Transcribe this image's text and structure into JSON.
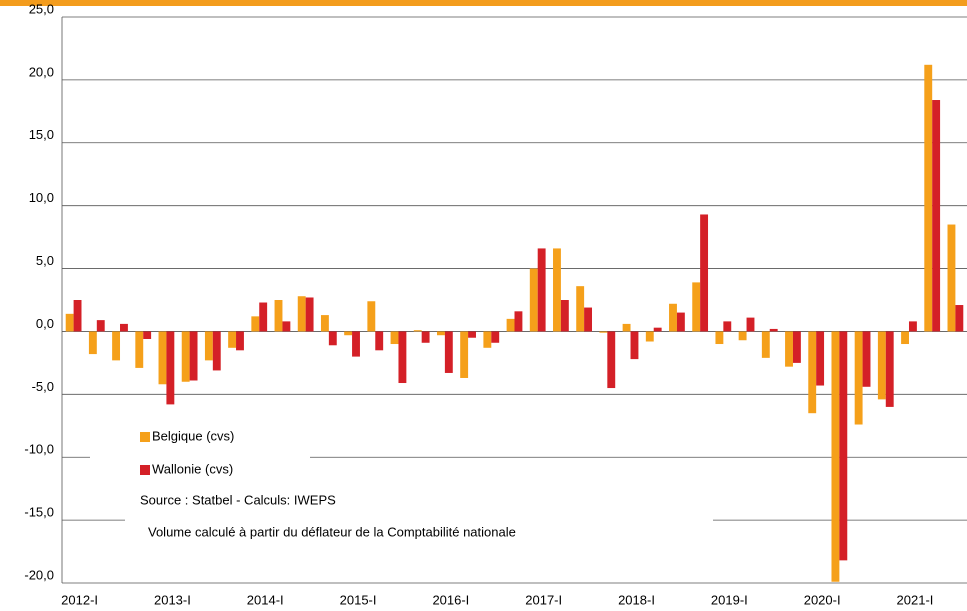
{
  "chart_data": {
    "type": "bar",
    "categories": [
      "2012-I",
      null,
      null,
      null,
      "2013-I",
      null,
      null,
      null,
      "2014-I",
      null,
      null,
      null,
      "2015-I",
      null,
      null,
      null,
      "2016-I",
      null,
      null,
      null,
      "2017-I",
      null,
      null,
      null,
      "2018-I",
      null,
      null,
      null,
      "2019-I",
      null,
      null,
      null,
      "2020-I",
      null,
      null,
      null,
      "2021-I",
      null,
      null
    ],
    "series": [
      {
        "name": "Belgique (cvs)",
        "color": "#f5a01a",
        "values": [
          1.4,
          -1.8,
          -2.3,
          -2.9,
          -4.2,
          -4.0,
          -2.3,
          -1.3,
          1.2,
          2.5,
          2.8,
          1.3,
          -0.3,
          2.4,
          -1.0,
          0.1,
          -0.3,
          -3.7,
          -1.3,
          1.0,
          5.0,
          6.6,
          3.6,
          -0.1,
          0.6,
          -0.8,
          2.2,
          3.9,
          -1.0,
          -0.7,
          -2.1,
          -2.8,
          -6.5,
          -19.9,
          -7.4,
          -5.4,
          -1.0,
          21.2,
          8.5
        ]
      },
      {
        "name": "Wallonie (cvs)",
        "color": "#d42027",
        "values": [
          2.5,
          0.9,
          0.6,
          -0.6,
          -5.8,
          -3.9,
          -3.1,
          -1.5,
          2.3,
          0.8,
          2.7,
          -1.1,
          -2.0,
          -1.5,
          -4.1,
          -0.9,
          -3.3,
          -0.5,
          -0.9,
          1.6,
          6.6,
          2.5,
          1.9,
          -4.5,
          -2.2,
          0.3,
          1.5,
          9.3,
          0.8,
          1.1,
          0.2,
          -2.5,
          -4.3,
          -18.2,
          -4.4,
          -6.0,
          0.8,
          18.4,
          2.1
        ]
      }
    ],
    "annotations": [
      "Source : Statbel - Calculs: IWEPS",
      "Volume calculé à partir du déflateur de la Comptabilité nationale"
    ],
    "ylim": [
      -20,
      25
    ],
    "yticks": [
      {
        "value": -20,
        "label": "-20,0"
      },
      {
        "value": -15,
        "label": "-15,0"
      },
      {
        "value": -10,
        "label": "-10,0"
      },
      {
        "value": -5,
        "label": "-5,0"
      },
      {
        "value": 0,
        "label": "0,0"
      },
      {
        "value": 5,
        "label": "5,0"
      },
      {
        "value": 10,
        "label": "10,0"
      },
      {
        "value": 15,
        "label": "15,0"
      },
      {
        "value": 20,
        "label": "20,0"
      },
      {
        "value": 25,
        "label": "25,0"
      }
    ],
    "grid": true
  }
}
